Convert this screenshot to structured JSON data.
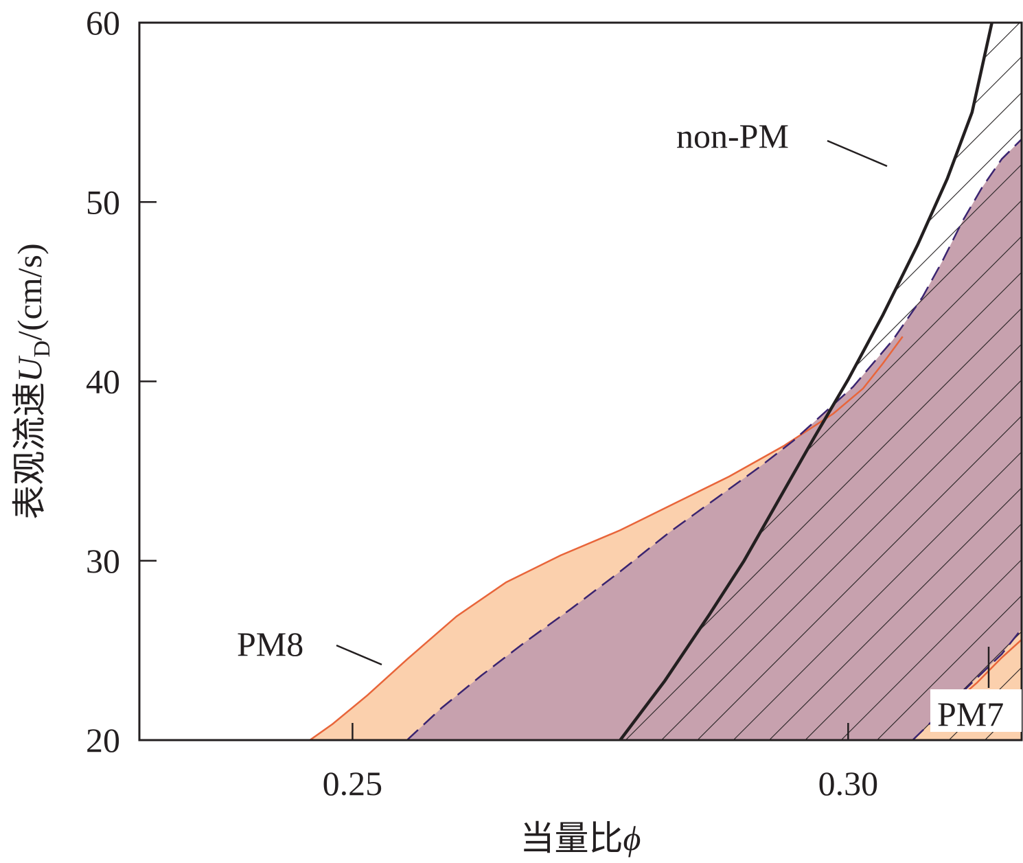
{
  "chart_data": {
    "type": "area",
    "xlabel": "当量比",
    "xlabel_symbol": "ϕ",
    "ylabel": "表观流速",
    "ylabel_symbol": "U",
    "ylabel_subscript": "D",
    "ylabel_unit": "/(cm/s)",
    "xlim": [
      0.2285,
      0.3175
    ],
    "ylim": [
      20,
      60
    ],
    "x_ticks": [
      0.25,
      0.3
    ],
    "x_tick_labels": [
      "0.25",
      "0.30"
    ],
    "y_ticks": [
      20,
      30,
      40,
      50,
      60
    ],
    "y_tick_labels": [
      "20",
      "30",
      "40",
      "50",
      "60"
    ],
    "grid": false,
    "regions": [
      {
        "name": "PM8",
        "color": "#fbd0ad",
        "edge_color": "#e8653a",
        "upper_boundary": {
          "x": [
            0.2457,
            0.248,
            0.2515,
            0.2555,
            0.2605,
            0.2655,
            0.271,
            0.277,
            0.2825,
            0.288,
            0.2935,
            0.2985,
            0.3015,
            0.3035,
            0.3055
          ],
          "y": [
            20.0,
            20.9,
            22.5,
            24.5,
            26.9,
            28.8,
            30.3,
            31.7,
            33.2,
            34.7,
            36.4,
            38.2,
            39.6,
            41.0,
            42.5
          ]
        }
      },
      {
        "name": "PM",
        "color": "#c7a1ae",
        "edge_color": "#3a2470",
        "upper_boundary": {
          "x": [
            0.2555,
            0.259,
            0.263,
            0.2675,
            0.272,
            0.277,
            0.282,
            0.287,
            0.291,
            0.2945,
            0.2975,
            0.3005,
            0.3045,
            0.3075,
            0.3095,
            0.3115,
            0.3135,
            0.3155,
            0.3175
          ],
          "y": [
            20.0,
            21.8,
            23.6,
            25.5,
            27.3,
            29.4,
            31.6,
            33.6,
            35.2,
            36.7,
            38.2,
            39.7,
            42.3,
            44.7,
            46.7,
            48.9,
            50.8,
            52.4,
            53.5
          ]
        },
        "lower_boundary": {
          "x": [
            0.3065,
            0.3095,
            0.3125,
            0.3155,
            0.3175
          ],
          "y": [
            20.0,
            21.6,
            23.2,
            24.8,
            26.2
          ]
        }
      },
      {
        "name": "PM7",
        "color": "#fbd0ad",
        "edge_color": "#e8653a",
        "boundary": {
          "x": [
            0.3105,
            0.313,
            0.3155,
            0.3175,
            0.3175,
            0.3155,
            0.313,
            0.3115
          ],
          "y": [
            22.0,
            23.2,
            24.6,
            25.6,
            23.3,
            22.6,
            21.8,
            21.3
          ]
        }
      },
      {
        "name": "non-PM",
        "fill": "hatched",
        "boundary_line": {
          "x": [
            0.277,
            0.2815,
            0.286,
            0.2895,
            0.293,
            0.2965,
            0.3,
            0.3035,
            0.307,
            0.31,
            0.3125,
            0.3145
          ],
          "y": [
            20.0,
            23.3,
            27.0,
            30.0,
            33.4,
            36.8,
            40.1,
            43.7,
            47.6,
            51.3,
            55.0,
            60.0
          ]
        }
      }
    ],
    "annotations": [
      {
        "text": "non-PM",
        "at": [
          0.3065,
          53.1
        ]
      },
      {
        "text": "PM8",
        "at": [
          0.2485,
          24.0
        ]
      },
      {
        "text": "PM7",
        "at": [
          0.3105,
          22.8
        ]
      }
    ]
  }
}
